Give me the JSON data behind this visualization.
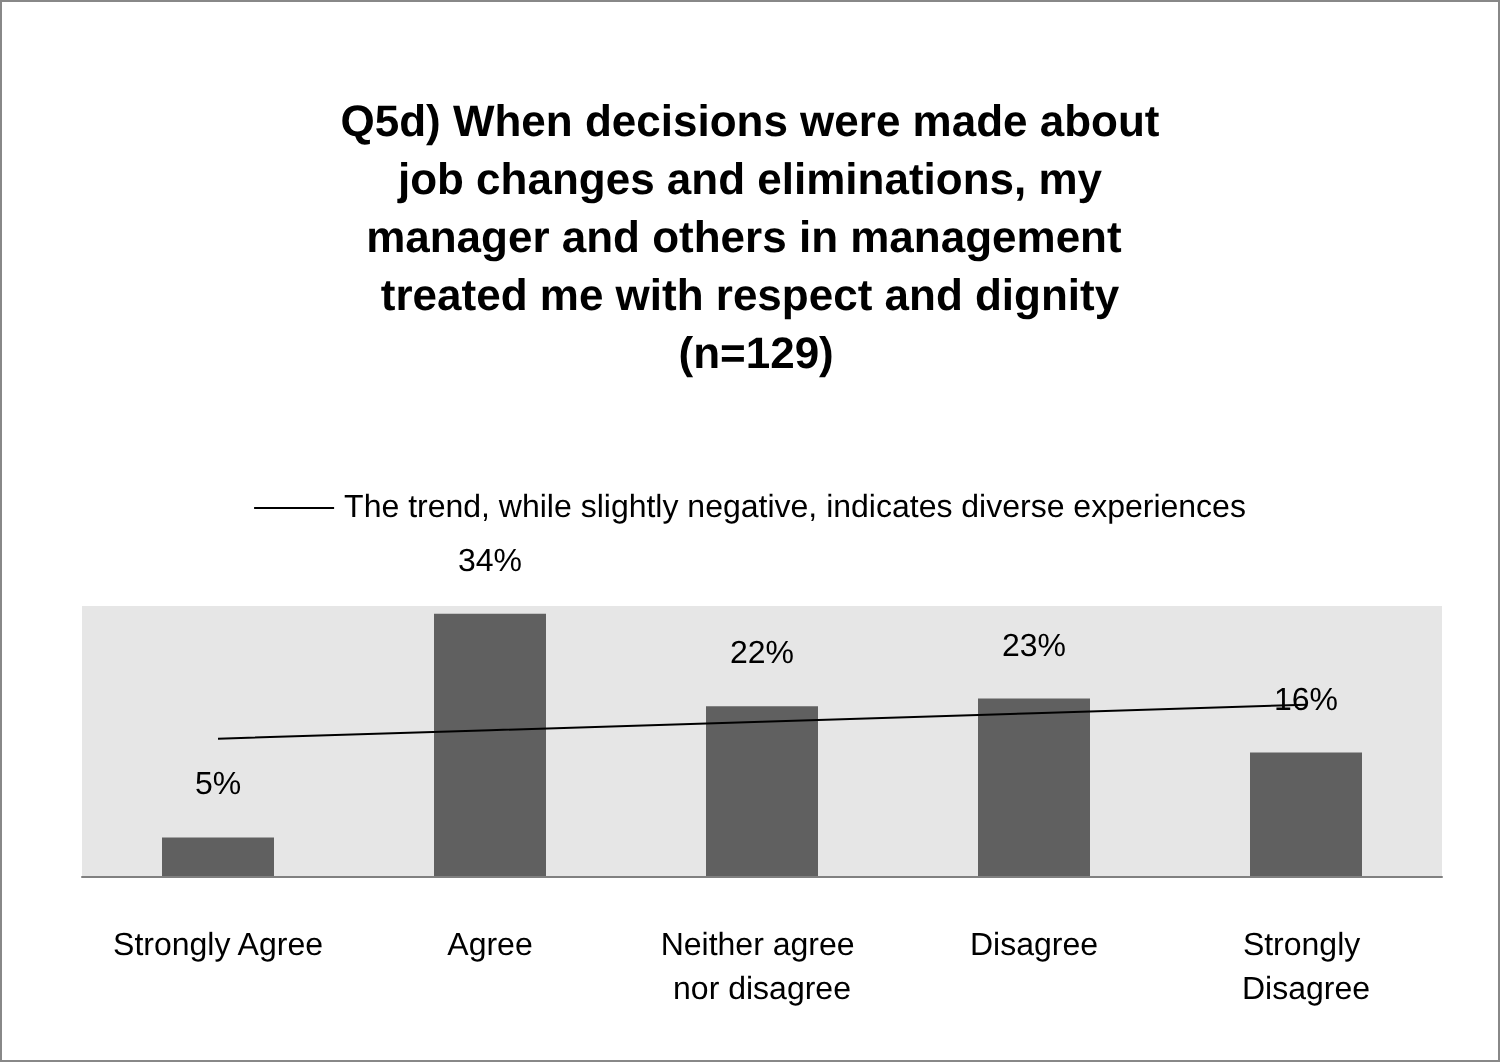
{
  "chart_data": {
    "type": "bar",
    "title": "Q5d) When decisions were made about job changes and eliminations, my manager and others in management treated me with respect and dignity (n=129)",
    "categories": [
      "Strongly Agree",
      "Agree",
      "Neither agree nor disagree",
      "Disagree",
      "Strongly Disagree"
    ],
    "series": [
      {
        "color": "#606060",
        "values": [
          5,
          34,
          22,
          23,
          16
        ],
        "value_labels": [
          "5%",
          "34%",
          "22%",
          "23%",
          "16%"
        ]
      },
      {
        "type": "line",
        "name": "The trend, while slightly negative, indicates diverse experiences",
        "color": "#000000",
        "values": [
          17.8,
          18.9,
          20,
          21.1,
          22.2
        ]
      }
    ],
    "legend": "top",
    "grid": false,
    "marker": "none"
  }
}
